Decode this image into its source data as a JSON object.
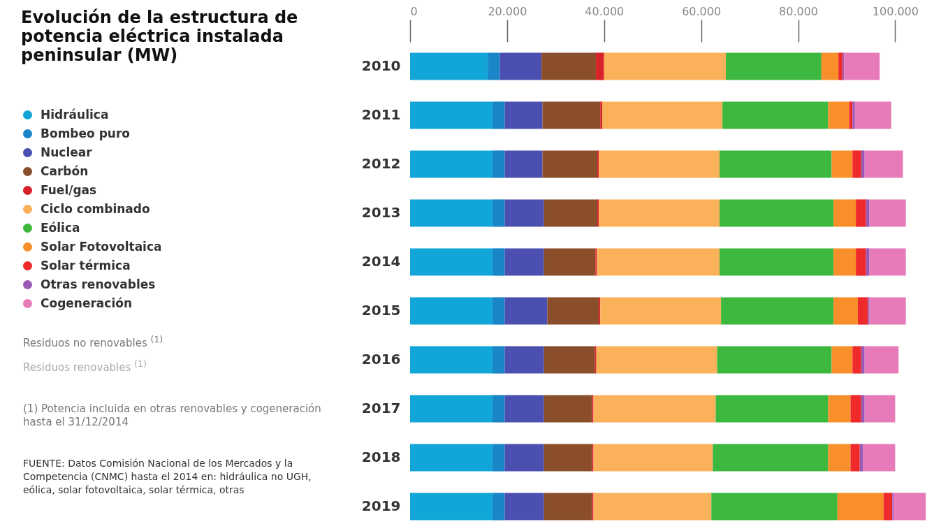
{
  "chart_data": {
    "type": "bar",
    "orientation": "horizontal",
    "stacked": true,
    "title": "Evolución de la estructura de potencia eléctrica instalada peninsular (MW)",
    "categories": [
      "2010",
      "2011",
      "2012",
      "2013",
      "2014",
      "2015",
      "2016",
      "2017",
      "2018",
      "2019"
    ],
    "series": [
      {
        "name": "Hidráulica",
        "color": "#12a6d8",
        "values": [
          16000,
          17000,
          17000,
          17000,
          17000,
          17000,
          17000,
          17000,
          17000,
          17000
        ]
      },
      {
        "name": "Bombeo puro",
        "color": "#1a86c8",
        "values": [
          2500,
          2500,
          2500,
          2500,
          2500,
          2500,
          2500,
          2500,
          2500,
          2500
        ]
      },
      {
        "name": "Nuclear",
        "color": "#4b4fb0",
        "values": [
          8600,
          7800,
          7800,
          8100,
          8100,
          8800,
          8100,
          8100,
          8100,
          8100
        ]
      },
      {
        "name": "Carbón",
        "color": "#8b4e2a",
        "values": [
          11200,
          11900,
          11300,
          11000,
          10600,
          10600,
          10500,
          9900,
          9900,
          9900
        ]
      },
      {
        "name": "Fuel/gas",
        "color": "#d8232a",
        "values": [
          1700,
          400,
          300,
          300,
          300,
          300,
          300,
          300,
          300,
          300
        ]
      },
      {
        "name": "Ciclo combinado",
        "color": "#fbb05a",
        "values": [
          25100,
          24800,
          24900,
          24900,
          25300,
          24900,
          24900,
          25200,
          24600,
          24300
        ]
      },
      {
        "name": "Eólica",
        "color": "#3db83f",
        "values": [
          19700,
          21800,
          23100,
          23500,
          23500,
          23200,
          23600,
          23200,
          23800,
          26000
        ]
      },
      {
        "name": "Solar Fotovoltaica",
        "color": "#f88f2a",
        "values": [
          3500,
          4300,
          4300,
          4600,
          4600,
          5000,
          4300,
          4600,
          4600,
          9500
        ]
      },
      {
        "name": "Solar térmica",
        "color": "#ee2a2a",
        "values": [
          900,
          700,
          1800,
          2100,
          2100,
          2100,
          1800,
          2200,
          1900,
          1800
        ]
      },
      {
        "name": "Otras renovables",
        "color": "#9b59b6",
        "values": [
          300,
          500,
          700,
          700,
          700,
          300,
          700,
          700,
          700,
          300
        ]
      },
      {
        "name": "Cogeneración",
        "color": "#e77ab8",
        "values": [
          7300,
          7500,
          7900,
          7500,
          7500,
          7500,
          7000,
          6300,
          6600,
          6600
        ]
      }
    ],
    "xlim": [
      0,
      107000
    ],
    "xticks": [
      0,
      {
        "value": 20000,
        "label": "20.000"
      },
      {
        "value": 40000,
        "label": "40.000"
      },
      {
        "value": 60000,
        "label": "60.000"
      },
      {
        "value": 80000,
        "label": "80.000"
      },
      {
        "value": 100000,
        "label": "100.000"
      }
    ],
    "legend": "left",
    "annotations": [
      "Residuos no renovables $^{(1)}$",
      "Residuos renovables $^{(1)}$",
      "(1) Potencia incluida en otras renovables y cogeneración hasta el 31/12/2014",
      "FUENTE: Datos Comisión Nacional de los Mercados y la Competencia (CNMC) hasta el 2014 en: hidráulica no UGH, eólica, solar fotovoltaica, solar térmica, otras"
    ]
  }
}
